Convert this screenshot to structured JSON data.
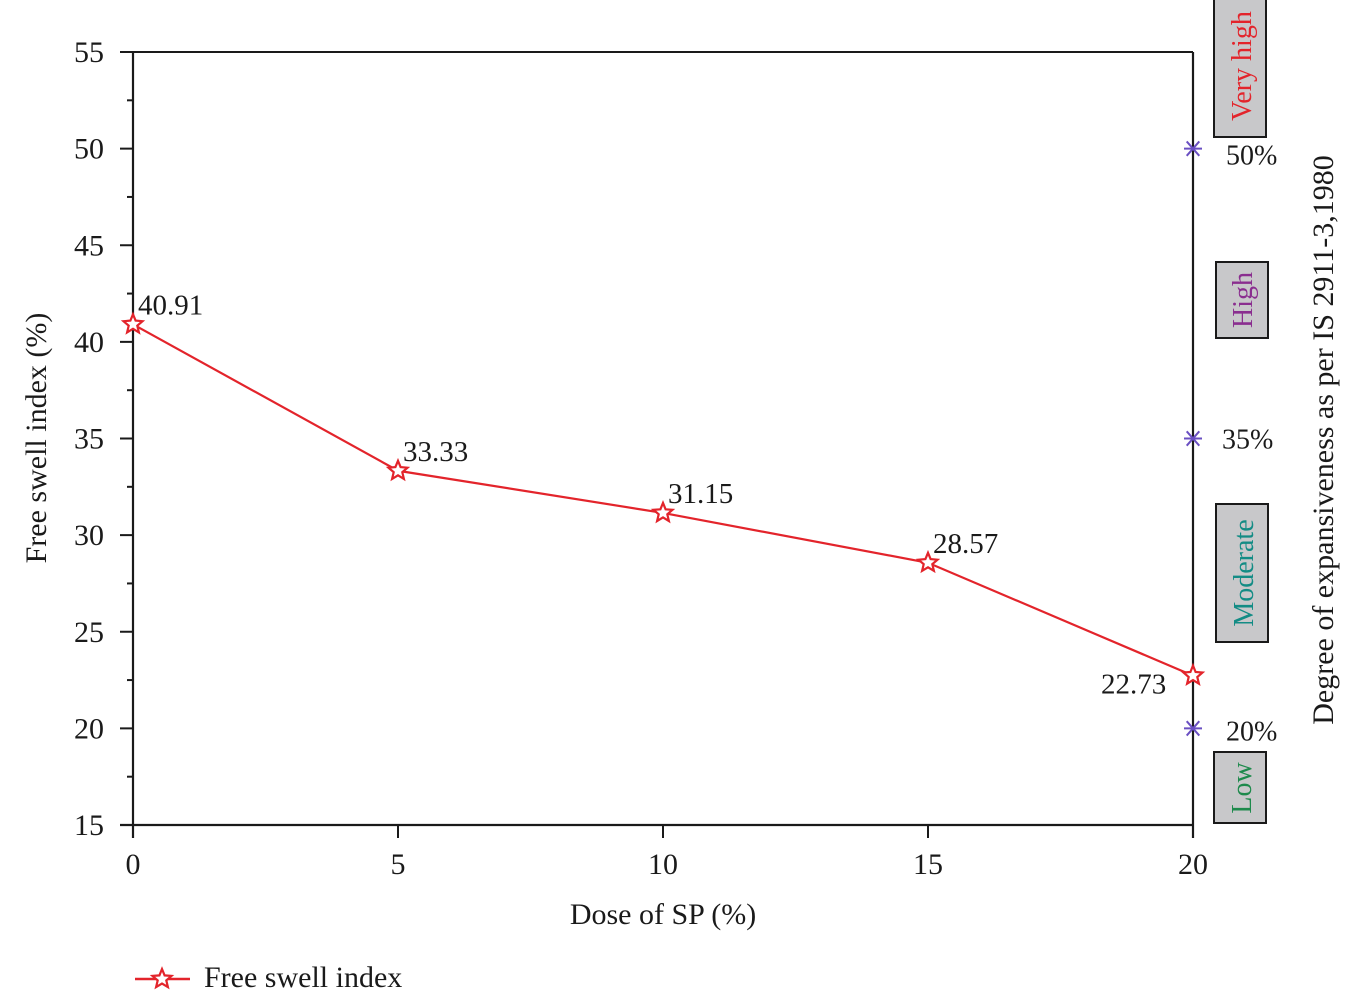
{
  "chart_data": {
    "type": "line",
    "title": "",
    "xlabel": "Dose of SP (%)",
    "ylabel": "Free swell index (%)",
    "y2label": "Degree of expansiveness as per IS 2911-3,1980",
    "xlim": [
      0,
      20
    ],
    "ylim": [
      15,
      55
    ],
    "x_ticks": [
      "0",
      "5",
      "10",
      "15",
      "20"
    ],
    "y_ticks": [
      "15",
      "20",
      "25",
      "30",
      "35",
      "40",
      "45",
      "50",
      "55"
    ],
    "grid": false,
    "legend_position": "bottom-left",
    "x": [
      0,
      5,
      10,
      15,
      20
    ],
    "series": [
      {
        "name": "Free swell index",
        "values": [
          40.91,
          33.33,
          31.15,
          28.57,
          22.73
        ],
        "labels": [
          "40.91",
          "33.33",
          "31.15",
          "28.57",
          "22.73"
        ],
        "color": "#e3242b",
        "marker": "star"
      }
    ],
    "thresholds": [
      {
        "value": 20,
        "label": "20%",
        "marker": "asterisk",
        "color": "#6a4fc2"
      },
      {
        "value": 35,
        "label": "35%",
        "marker": "asterisk",
        "color": "#6a4fc2"
      },
      {
        "value": 50,
        "label": "50%",
        "marker": "asterisk",
        "color": "#6a4fc2"
      }
    ],
    "expansiveness_bands": [
      {
        "label": "Low",
        "color": "#1e8a4c",
        "range": "below 20%"
      },
      {
        "label": "Moderate",
        "color": "#138c85",
        "range": "20% - 35%"
      },
      {
        "label": "High",
        "color": "#8a2e8f",
        "range": "35% - 50%"
      },
      {
        "label": "Very high",
        "color": "#e3242b",
        "range": "above 50%"
      }
    ]
  },
  "colors": {
    "line": "#e3242b",
    "axis": "#1a1a1a",
    "band_box_fill": "#c8c8ca",
    "threshold_marker": "#6a4fc2"
  },
  "legend": {
    "items": [
      {
        "label": "Free swell index"
      }
    ]
  }
}
